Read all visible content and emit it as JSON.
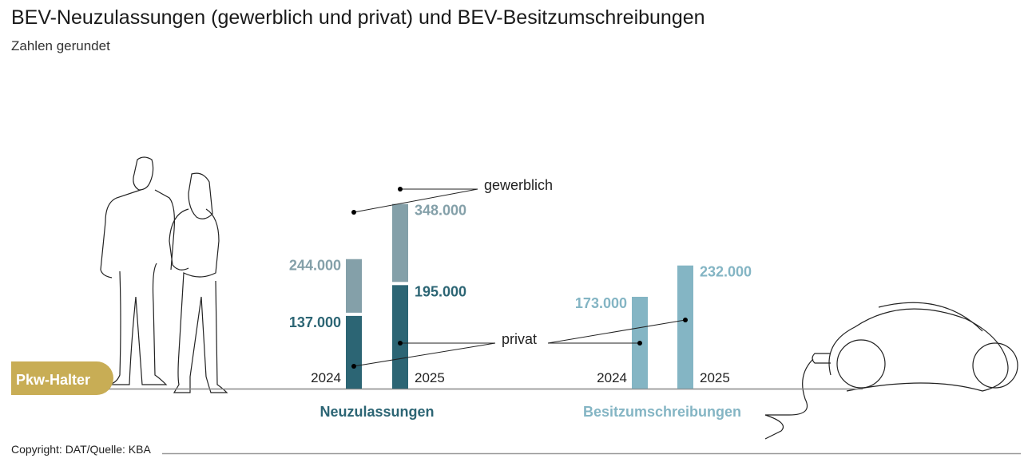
{
  "title": "BEV-Neuzulassungen (gewerblich und privat) und BEV-Besitzumschreibungen",
  "subtitle": "Zahlen gerundet",
  "badge": "Pkw-Halter",
  "copyright": "Copyright: DAT/Quelle: KBA",
  "colors": {
    "gewerblich": "#84a0a9",
    "privat": "#2c6574",
    "besitz": "#84b5c4",
    "badge": "#c8ad55"
  },
  "chart_data": {
    "type": "bar",
    "stacked": true,
    "groups": [
      {
        "label": "Neuzulassungen",
        "categories": [
          "2024",
          "2025"
        ],
        "series": [
          {
            "name": "privat",
            "values": [
              137000,
              195000
            ],
            "labels": [
              "137.000",
              "195.000"
            ]
          },
          {
            "name": "gewerblich",
            "values": [
              244000,
              348000
            ],
            "labels": [
              "244.000",
              "348.000"
            ]
          }
        ]
      },
      {
        "label": "Besitzumschreibungen",
        "categories": [
          "2024",
          "2025"
        ],
        "series": [
          {
            "values": [
              173000,
              232000
            ],
            "labels": [
              "173.000",
              "232.000"
            ]
          }
        ]
      }
    ],
    "annotations": [
      "gewerblich",
      "privat"
    ]
  }
}
